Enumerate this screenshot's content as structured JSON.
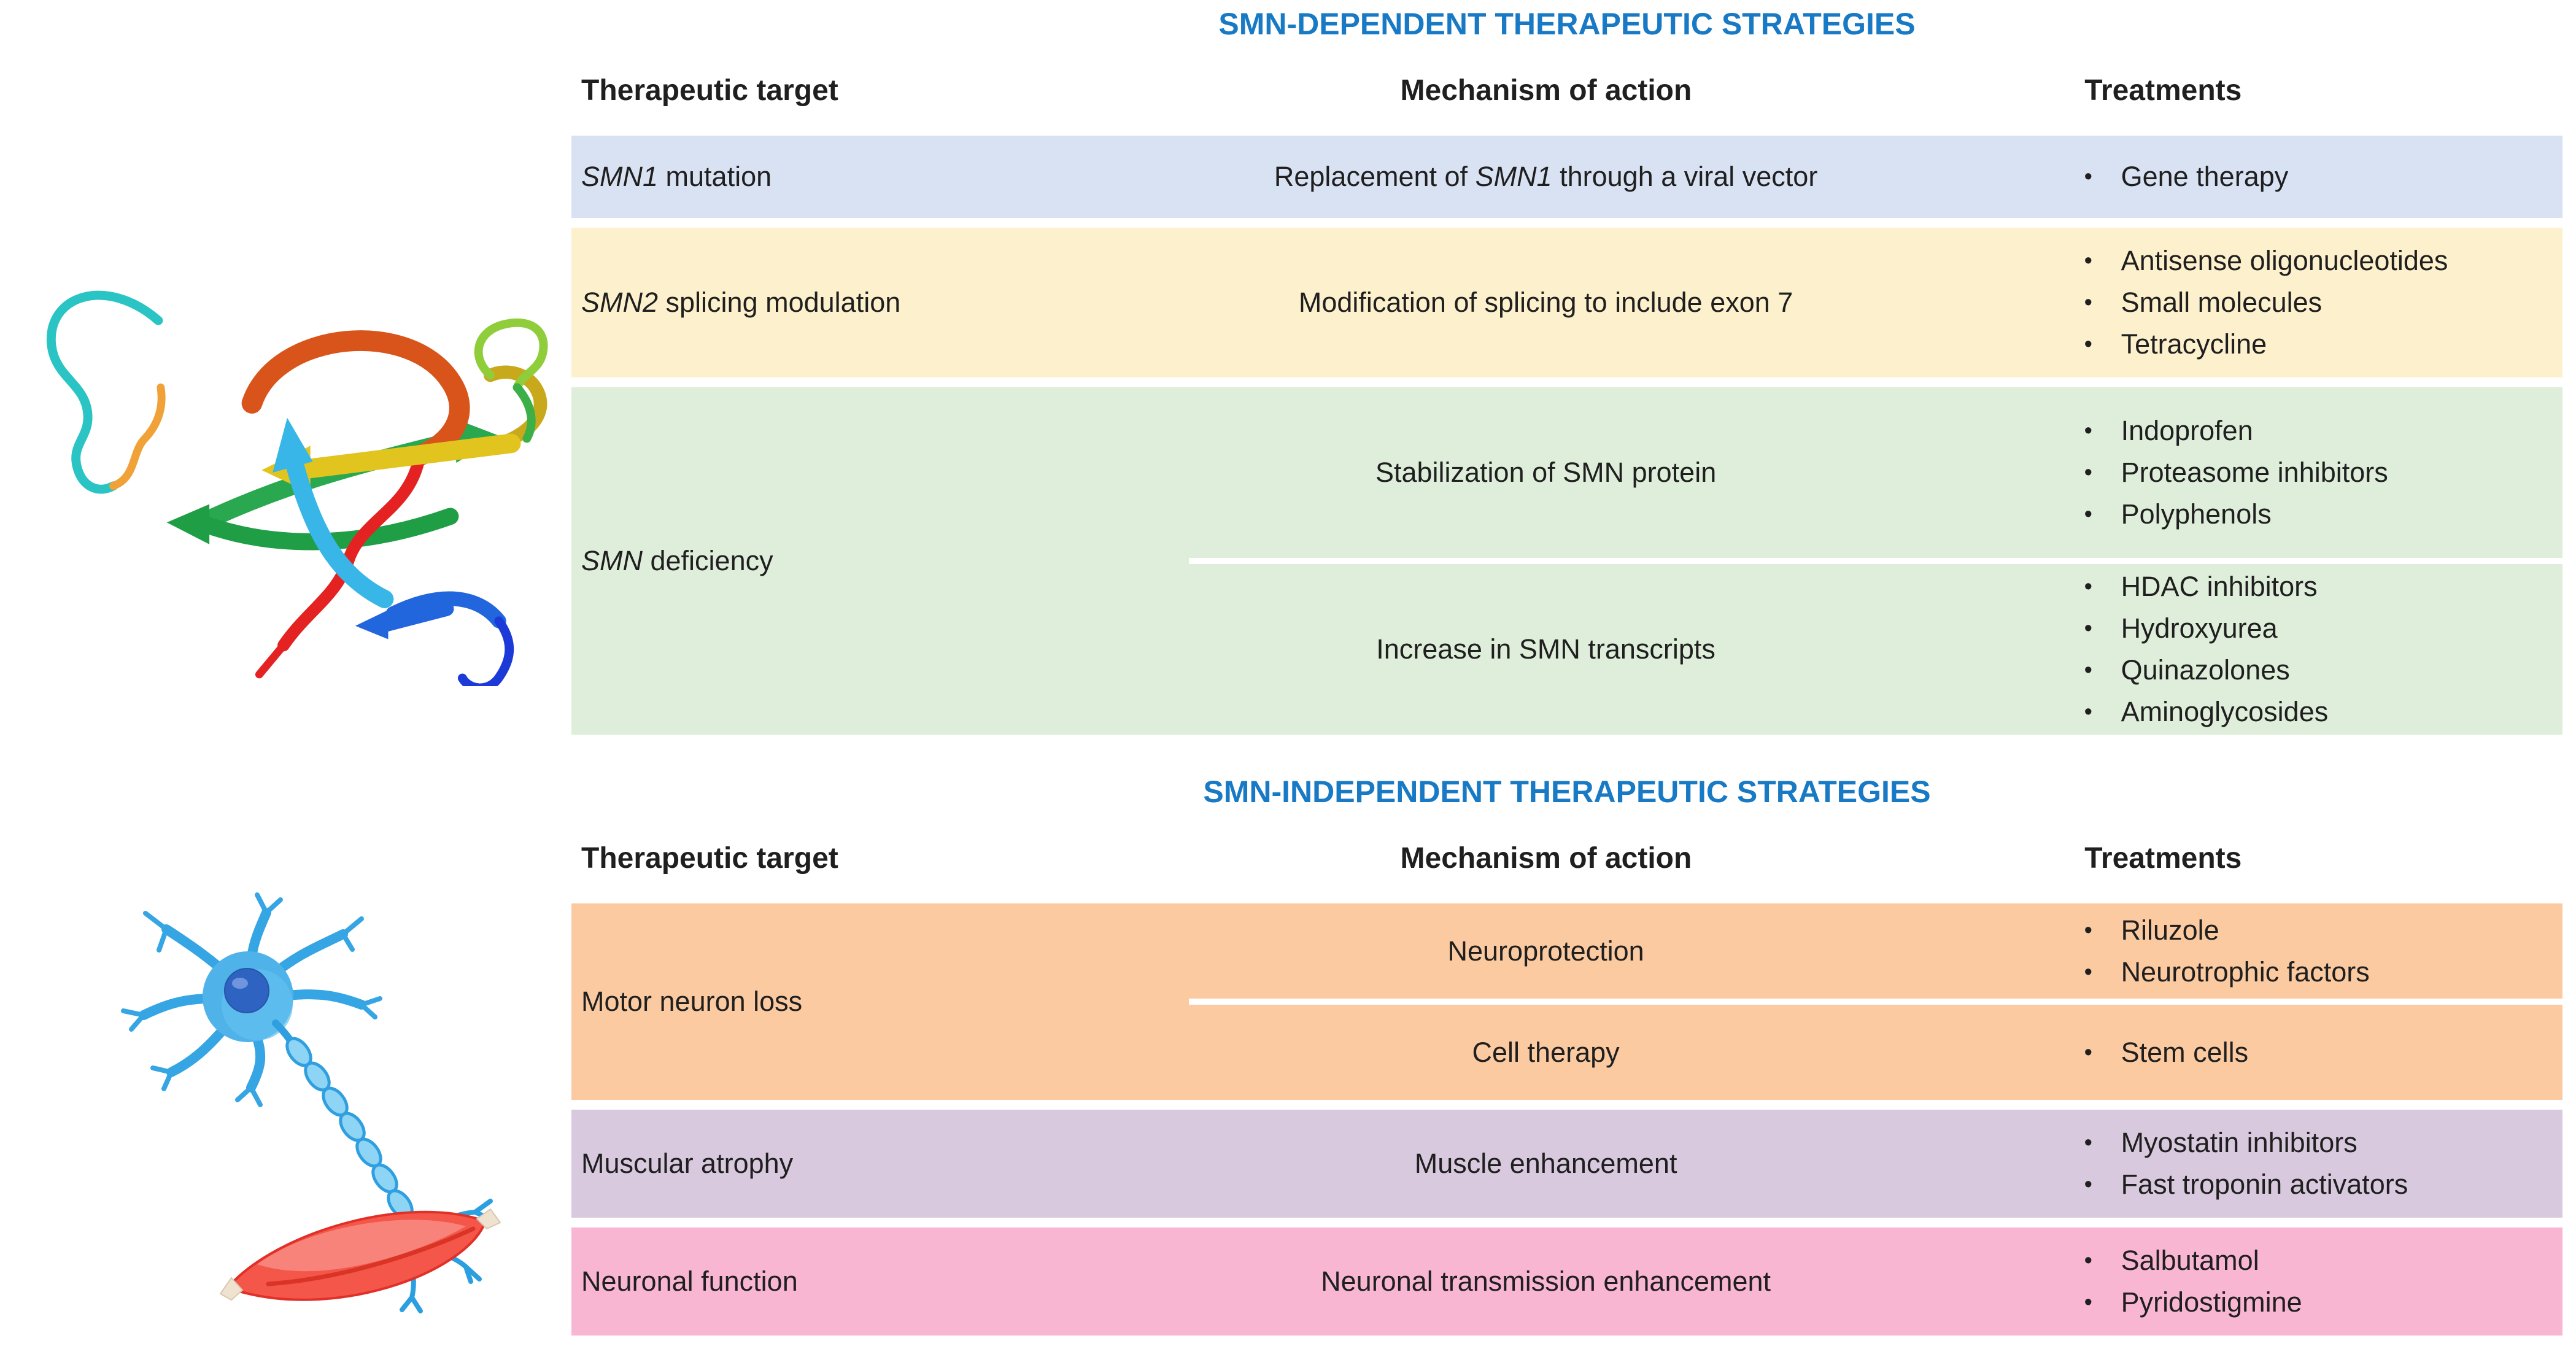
{
  "accent": {
    "title_color": "#1879c4"
  },
  "bullet_glyph": "•",
  "illustrations": {
    "protein": "Rainbow ribbon diagram of the SMN protein structure",
    "neuron": "Motor neuron with myelinated axon connecting to a red muscle fiber"
  },
  "sections": [
    {
      "title": "SMN-DEPENDENT THERAPEUTIC STRATEGIES",
      "columns": [
        "Therapeutic target",
        "Mechanism of action",
        "Treatments"
      ],
      "rows": [
        {
          "color": "#d9e2f3",
          "target": [
            {
              "text": "SMN1",
              "italic": true
            },
            {
              "text": " mutation"
            }
          ],
          "subrows": [
            {
              "mechanism": [
                {
                  "text": "Replacement of "
                },
                {
                  "text": "SMN1",
                  "italic": true
                },
                {
                  "text": " through a viral vector"
                }
              ],
              "treatments": [
                "Gene therapy"
              ]
            }
          ]
        },
        {
          "color": "#fdf0cc",
          "target": [
            {
              "text": "SMN2",
              "italic": true
            },
            {
              "text": " splicing modulation"
            }
          ],
          "subrows": [
            {
              "mechanism": [
                {
                  "text": "Modification of splicing to include exon 7"
                }
              ],
              "treatments": [
                "Antisense oligonucleotides",
                "Small molecules",
                "Tetracycline"
              ]
            }
          ]
        },
        {
          "color": "#dfeeda",
          "target": [
            {
              "text": "SMN",
              "italic": true
            },
            {
              "text": " deficiency"
            }
          ],
          "subrows": [
            {
              "mechanism": [
                {
                  "text": "Stabilization of SMN protein"
                }
              ],
              "treatments": [
                "Indoprofen",
                "Proteasome inhibitors",
                "Polyphenols"
              ]
            },
            {
              "mechanism": [
                {
                  "text": "Increase in SMN transcripts"
                }
              ],
              "treatments": [
                "HDAC inhibitors",
                "Hydroxyurea",
                "Quinazolones",
                "Aminoglycosides"
              ]
            }
          ]
        }
      ]
    },
    {
      "title": "SMN-INDEPENDENT THERAPEUTIC STRATEGIES",
      "columns": [
        "Therapeutic target",
        "Mechanism of action",
        "Treatments"
      ],
      "rows": [
        {
          "color": "#fbcaa0",
          "target": [
            {
              "text": "Motor neuron loss"
            }
          ],
          "subrows": [
            {
              "mechanism": [
                {
                  "text": "Neuroprotection"
                }
              ],
              "treatments": [
                "Riluzole",
                "Neurotrophic factors"
              ]
            },
            {
              "mechanism": [
                {
                  "text": "Cell therapy"
                }
              ],
              "treatments": [
                "Stem cells"
              ]
            }
          ]
        },
        {
          "color": "#d8c9de",
          "target": [
            {
              "text": "Muscular atrophy"
            }
          ],
          "subrows": [
            {
              "mechanism": [
                {
                  "text": "Muscle enhancement"
                }
              ],
              "treatments": [
                "Myostatin inhibitors",
                "Fast troponin activators"
              ]
            }
          ]
        },
        {
          "color": "#f9b6d3",
          "target": [
            {
              "text": "Neuronal function"
            }
          ],
          "subrows": [
            {
              "mechanism": [
                {
                  "text": "Neuronal transmission enhancement"
                }
              ],
              "treatments": [
                "Salbutamol",
                "Pyridostigmine"
              ]
            }
          ]
        }
      ]
    }
  ]
}
